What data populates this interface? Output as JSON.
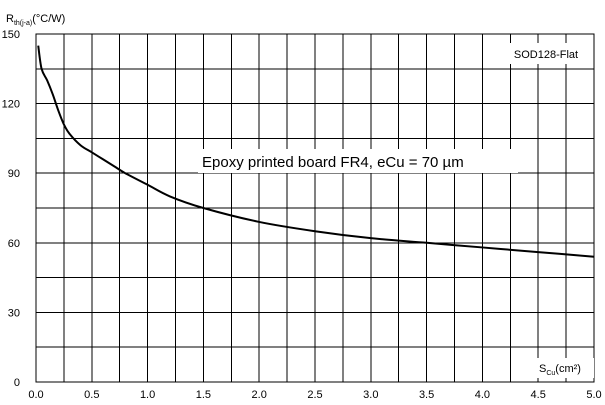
{
  "chart_data": {
    "type": "line",
    "ylabel_main": "R",
    "ylabel_sub": "th(j-a)",
    "ylabel_unit": "(°C/W)",
    "xlabel_main": "S",
    "xlabel_sub": "Cu",
    "xlabel_unit": "(cm²)",
    "tag": "SOD128-Flat",
    "annotation": "Epoxy printed board FR4, eCu = 70 µm",
    "xlim": [
      0,
      5
    ],
    "ylim": [
      0,
      150
    ],
    "x_ticks": [
      "0.0",
      "0.5",
      "1.0",
      "1.5",
      "2.0",
      "2.5",
      "3.0",
      "3.5",
      "4.0",
      "4.5",
      "5.0"
    ],
    "y_ticks": [
      "0",
      "30",
      "60",
      "90",
      "120",
      "150"
    ],
    "grid": true,
    "series": [
      {
        "color": "#000000",
        "x": [
          0.02,
          0.05,
          0.1,
          0.15,
          0.2,
          0.25,
          0.3,
          0.4,
          0.5,
          0.6,
          0.7,
          0.8,
          1.0,
          1.2,
          1.5,
          2.0,
          2.5,
          3.0,
          3.5,
          4.0,
          4.5,
          5.0
        ],
        "y": [
          145,
          135,
          130,
          124,
          117,
          111,
          107,
          102,
          99,
          96,
          93,
          90,
          85,
          80,
          75,
          69,
          65,
          62,
          60,
          58,
          56,
          54
        ]
      }
    ]
  }
}
